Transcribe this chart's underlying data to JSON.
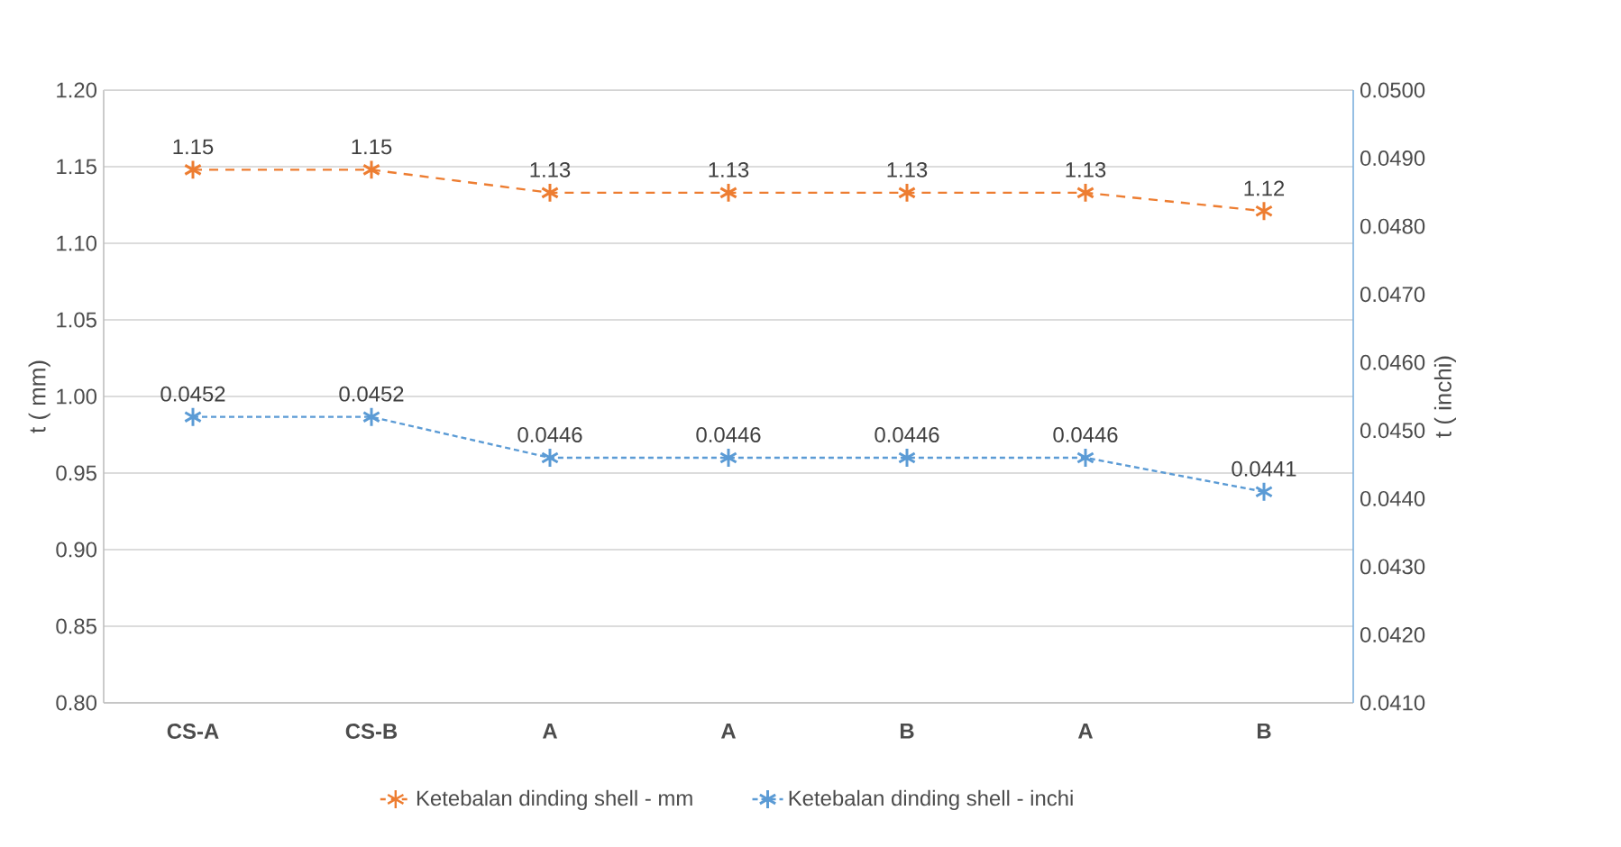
{
  "chart_data": {
    "type": "line",
    "ylabel": "t ( mm)",
    "y2label": "t ( inchi)",
    "categories": [
      "CS-A",
      "CS-B",
      "A",
      "A",
      "B",
      "A",
      "B"
    ],
    "ylim": [
      0.8,
      1.2
    ],
    "yticks": [
      {
        "value": 0.8,
        "label": "0.80"
      },
      {
        "value": 0.85,
        "label": "0.85"
      },
      {
        "value": 0.9,
        "label": "0.90"
      },
      {
        "value": 0.95,
        "label": "0.95"
      },
      {
        "value": 1.0,
        "label": "1.00"
      },
      {
        "value": 1.05,
        "label": "1.05"
      },
      {
        "value": 1.1,
        "label": "1.10"
      },
      {
        "value": 1.15,
        "label": "1.15"
      },
      {
        "value": 1.2,
        "label": "1.20"
      }
    ],
    "y2lim": [
      0.041,
      0.05
    ],
    "y2ticks": [
      {
        "value": 0.041,
        "label": "0.0410"
      },
      {
        "value": 0.042,
        "label": "0.0420"
      },
      {
        "value": 0.043,
        "label": "0.0430"
      },
      {
        "value": 0.044,
        "label": "0.0440"
      },
      {
        "value": 0.045,
        "label": "0.0450"
      },
      {
        "value": 0.046,
        "label": "0.0460"
      },
      {
        "value": 0.047,
        "label": "0.0470"
      },
      {
        "value": 0.048,
        "label": "0.0480"
      },
      {
        "value": 0.049,
        "label": "0.0490"
      },
      {
        "value": 0.05,
        "label": "0.0500"
      }
    ],
    "grid": "y",
    "legend": "bottom",
    "marker": "cross",
    "line_style": "dashed",
    "series": [
      {
        "name": "Ketebalan dinding shell - mm",
        "color": "#ed7d31",
        "values": [
          1.148,
          1.148,
          1.133,
          1.133,
          1.133,
          1.133,
          1.121
        ],
        "value_labels": [
          "1.15",
          "1.15",
          "1.13",
          "1.13",
          "1.13",
          "1.13",
          "1.12"
        ]
      },
      {
        "name": "Ketebalan dinding shell - inchi",
        "color": "#5b9bd5",
        "axis": "y2",
        "values": [
          0.0452,
          0.0452,
          0.0446,
          0.0446,
          0.0446,
          0.0446,
          0.0441
        ],
        "value_labels": [
          "0.0452",
          "0.0452",
          "0.0446",
          "0.0446",
          "0.0446",
          "0.0446",
          "0.0441"
        ]
      }
    ]
  }
}
